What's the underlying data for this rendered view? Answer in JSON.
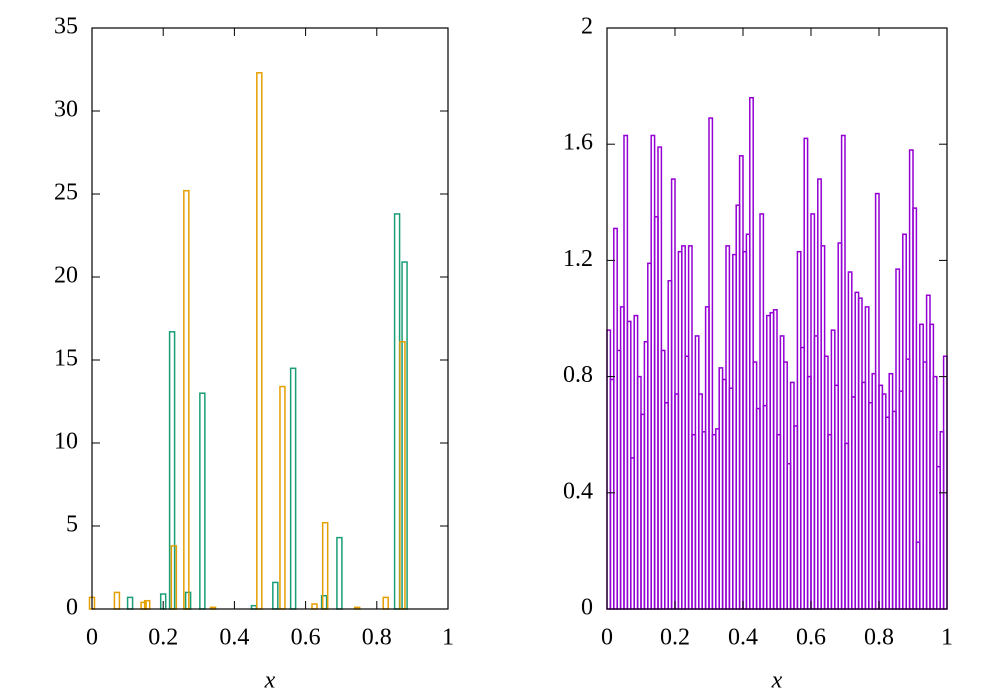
{
  "chart_data": [
    {
      "type": "bar",
      "xlabel": "x",
      "xlim": [
        0,
        1
      ],
      "ylim": [
        0,
        35
      ],
      "xticks": [
        0,
        0.2,
        0.4,
        0.6,
        0.8,
        1
      ],
      "yticks": [
        0,
        5,
        10,
        15,
        20,
        25,
        30,
        35
      ],
      "series": [
        {
          "color": "#1a9e77",
          "x": [
            0.107,
            0.2,
            0.225,
            0.27,
            0.31,
            0.455,
            0.515,
            0.565,
            0.652,
            0.695,
            0.857,
            0.878
          ],
          "values": [
            0.7,
            0.9,
            16.7,
            1.0,
            13.0,
            0.2,
            1.6,
            14.5,
            0.8,
            4.3,
            23.8,
            20.9
          ]
        },
        {
          "color": "#e69f00",
          "x": [
            0.0,
            0.07,
            0.145,
            0.155,
            0.23,
            0.265,
            0.34,
            0.47,
            0.535,
            0.625,
            0.655,
            0.745,
            0.825,
            0.872
          ],
          "values": [
            0.7,
            1.0,
            0.4,
            0.5,
            3.8,
            25.2,
            0.1,
            32.3,
            13.4,
            0.3,
            5.2,
            0.1,
            0.7,
            16.1
          ]
        }
      ]
    },
    {
      "type": "histogram",
      "xlabel": "x",
      "xlim": [
        0,
        1
      ],
      "ylim": [
        0,
        2
      ],
      "xticks": [
        0,
        0.2,
        0.4,
        0.6,
        0.8,
        1
      ],
      "yticks": [
        0,
        0.4,
        0.8,
        1.2,
        1.6,
        2
      ],
      "color": "#9400d3",
      "bins": [
        0,
        0.01,
        0.02,
        0.03,
        0.04,
        0.05,
        0.06,
        0.07,
        0.08,
        0.09,
        0.1,
        0.11,
        0.12,
        0.13,
        0.14,
        0.15,
        0.16,
        0.17,
        0.18,
        0.19,
        0.2,
        0.21,
        0.22,
        0.23,
        0.24,
        0.25,
        0.26,
        0.27,
        0.28,
        0.29,
        0.3,
        0.31,
        0.32,
        0.33,
        0.34,
        0.35,
        0.36,
        0.37,
        0.38,
        0.39,
        0.4,
        0.41,
        0.42,
        0.43,
        0.44,
        0.45,
        0.46,
        0.47,
        0.48,
        0.49,
        0.5,
        0.51,
        0.52,
        0.53,
        0.54,
        0.55,
        0.56,
        0.57,
        0.58,
        0.59,
        0.6,
        0.61,
        0.62,
        0.63,
        0.64,
        0.65,
        0.66,
        0.67,
        0.68,
        0.69,
        0.7,
        0.71,
        0.72,
        0.73,
        0.74,
        0.75,
        0.76,
        0.77,
        0.78,
        0.79,
        0.8,
        0.81,
        0.82,
        0.83,
        0.84,
        0.85,
        0.86,
        0.87,
        0.88,
        0.89,
        0.9,
        0.91,
        0.92,
        0.93,
        0.94,
        0.95,
        0.96,
        0.97,
        0.98,
        0.99,
        1
      ],
      "values": [
        0.96,
        0.79,
        1.31,
        0.89,
        1.04,
        1.63,
        0.99,
        0.52,
        1.01,
        0.8,
        0.67,
        0.92,
        1.19,
        1.63,
        1.35,
        1.59,
        0.89,
        0.71,
        1.13,
        1.48,
        0.74,
        1.23,
        1.25,
        0.87,
        1.25,
        0.6,
        0.94,
        0.74,
        0.61,
        1.04,
        1.69,
        0.6,
        0.62,
        0.83,
        0.79,
        1.25,
        0.76,
        1.22,
        1.39,
        1.56,
        1.23,
        1.29,
        1.76,
        0.85,
        0.69,
        1.36,
        0.7,
        1.01,
        1.02,
        1.03,
        0.6,
        0.94,
        0.85,
        0.5,
        0.78,
        0.63,
        1.23,
        0.9,
        1.62,
        0.8,
        1.36,
        0.94,
        1.48,
        1.25,
        0.87,
        0.6,
        0.96,
        0.77,
        1.26,
        1.63,
        0.57,
        1.16,
        0.73,
        1.09,
        1.07,
        0.78,
        1.04,
        0.71,
        0.81,
        1.43,
        0.77,
        0.74,
        0.66,
        0.81,
        0.68,
        1.17,
        0.75,
        1.29,
        0.86,
        1.58,
        1.38,
        0.23,
        0.98,
        0.85,
        1.08,
        0.98,
        0.8,
        0.49,
        0.61,
        0.87
      ]
    }
  ]
}
